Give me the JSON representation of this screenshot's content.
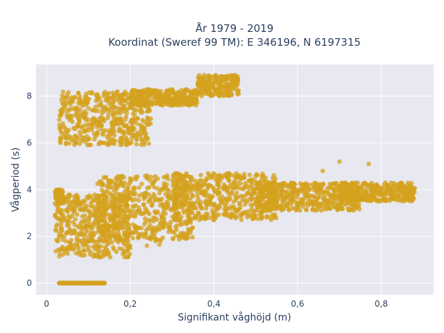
{
  "chart_data": {
    "type": "scatter",
    "title": "År 1979 - 2019",
    "subtitle": "Koordinat (Sweref 99 TM): E 346196, N 6197315",
    "xlabel": "Signifikant våghöjd (m)",
    "ylabel": "Vågperiod (s)",
    "xlim": [
      -0.025,
      0.925
    ],
    "ylim": [
      -0.5,
      9.35
    ],
    "x_ticks": [
      0,
      0.2,
      0.4,
      0.6,
      0.8
    ],
    "x_tick_labels": [
      "0",
      "0,2",
      "0,4",
      "0,6",
      "0,8"
    ],
    "y_ticks": [
      0,
      2,
      4,
      6,
      8
    ],
    "y_tick_labels": [
      "0",
      "2",
      "4",
      "6",
      "8"
    ],
    "grid": true,
    "marker_color": "#d4a21e",
    "plot_bg": "#e8e8f0",
    "series": [
      {
        "clusters": [
          {
            "x": [
              0.03,
              0.25
            ],
            "y": [
              5.9,
              8.2
            ]
          },
          {
            "x": [
              0.2,
              0.36
            ],
            "y": [
              7.6,
              8.3
            ]
          },
          {
            "x": [
              0.36,
              0.46
            ],
            "y": [
              8.0,
              8.9
            ]
          },
          {
            "x": [
              0.03,
              0.14
            ],
            "y": [
              0,
              0
            ]
          },
          {
            "x": [
              0.02,
              0.04
            ],
            "y": [
              3.4,
              4.0
            ]
          },
          {
            "x": [
              0.02,
              0.2
            ],
            "y": [
              1.1,
              3.8
            ]
          },
          {
            "x": [
              0.12,
              0.35
            ],
            "y": [
              1.8,
              4.6
            ]
          },
          {
            "x": [
              0.3,
              0.55
            ],
            "y": [
              2.7,
              4.7
            ]
          },
          {
            "x": [
              0.5,
              0.75
            ],
            "y": [
              3.1,
              4.3
            ]
          },
          {
            "x": [
              0.7,
              0.88
            ],
            "y": [
              3.5,
              4.3
            ]
          }
        ],
        "outliers": [
          {
            "x": 0.02,
            "y": 3.4
          },
          {
            "x": 0.03,
            "y": 4.0
          },
          {
            "x": 0.32,
            "y": 2.5
          },
          {
            "x": 0.43,
            "y": 8.7
          },
          {
            "x": 0.45,
            "y": 8.9
          },
          {
            "x": 0.66,
            "y": 4.8
          },
          {
            "x": 0.7,
            "y": 5.2
          },
          {
            "x": 0.77,
            "y": 5.1
          },
          {
            "x": 0.88,
            "y": 4.05
          },
          {
            "x": 0.86,
            "y": 3.8
          },
          {
            "x": 0.81,
            "y": 4.3
          },
          {
            "x": 0.27,
            "y": 1.65
          },
          {
            "x": 0.24,
            "y": 1.6
          }
        ]
      }
    ]
  }
}
